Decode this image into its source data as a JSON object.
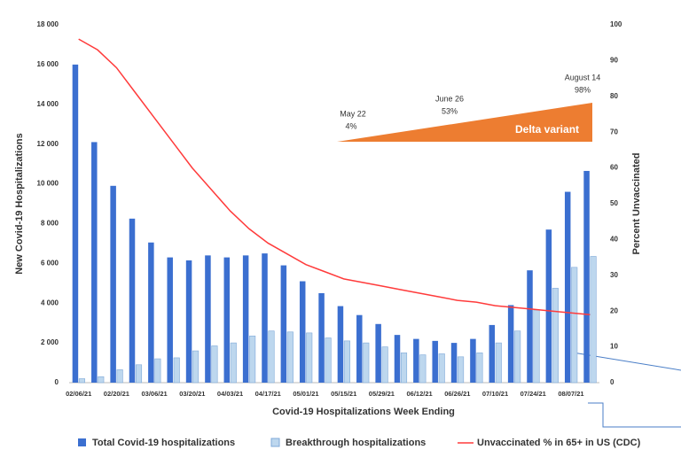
{
  "chart_data": {
    "type": "bar",
    "x_label": "Covid-19 Hospitalizations Week Ending",
    "y_label": "New Covid-19 Hospitalizations",
    "y2_label": "Percent Unvaccinated",
    "categories": [
      "02/06/21",
      null,
      "02/20/21",
      null,
      "03/06/21",
      null,
      "03/20/21",
      null,
      "04/03/21",
      null,
      "04/17/21",
      null,
      "05/01/21",
      null,
      "05/15/21",
      null,
      "05/29/21",
      null,
      "06/12/21",
      null,
      "06/26/21",
      null,
      "07/10/21",
      null,
      "07/24/21",
      null,
      "08/07/21",
      null
    ],
    "series": [
      {
        "name": "Total Covid-19 hospitalizations",
        "type": "bar",
        "color": "#3b6fd0",
        "values": [
          16000,
          12100,
          9900,
          8250,
          7050,
          6300,
          6150,
          6400,
          6300,
          6400,
          6500,
          5900,
          5100,
          4500,
          3850,
          3400,
          2950,
          2400,
          2200,
          2100,
          2000,
          2200,
          2900,
          3900,
          5650,
          7700,
          9600,
          10650
        ]
      },
      {
        "name": "Breakthrough hospitalizations",
        "type": "bar",
        "color": "#bdd7ee",
        "values": [
          200,
          300,
          650,
          900,
          1200,
          1250,
          1600,
          1850,
          2000,
          2350,
          2600,
          2550,
          2500,
          2250,
          2100,
          2000,
          1800,
          1500,
          1400,
          1450,
          1300,
          1500,
          2000,
          2600,
          3650,
          4750,
          5800,
          6350
        ]
      },
      {
        "name": "Unvaccinated % in 65+ in US (CDC)",
        "type": "line",
        "axis": "y2",
        "color": "#ff3b3b",
        "values": [
          96,
          93,
          88,
          81,
          74,
          67,
          60,
          54,
          48,
          43,
          39,
          36,
          33,
          31,
          29,
          28,
          27,
          26,
          25,
          24,
          23,
          22.5,
          21.5,
          21,
          20.5,
          20,
          19.5,
          19
        ]
      }
    ],
    "ylim": [
      0,
      18000
    ],
    "yticks": [
      0,
      {
        "value": 2000,
        "label": "2 000"
      },
      {
        "value": 4000,
        "label": "4 000"
      },
      {
        "value": 6000,
        "label": "6 000"
      },
      {
        "value": 8000,
        "label": "8 000"
      },
      {
        "value": 10000,
        "label": "10 000"
      },
      {
        "value": 12000,
        "label": "12 000"
      },
      {
        "value": 14000,
        "label": "14 000"
      },
      {
        "value": 16000,
        "label": "16 000"
      },
      {
        "value": 18000,
        "label": "18 000"
      }
    ],
    "y2lim": [
      0,
      100
    ],
    "y2ticks": [
      0,
      10,
      20,
      30,
      40,
      50,
      60,
      70,
      80,
      90,
      100
    ],
    "annotations": [
      "May 22",
      "4%",
      "June 26",
      "53%",
      "August 14",
      "98%",
      "Delta variant"
    ],
    "legend": "bottom"
  }
}
